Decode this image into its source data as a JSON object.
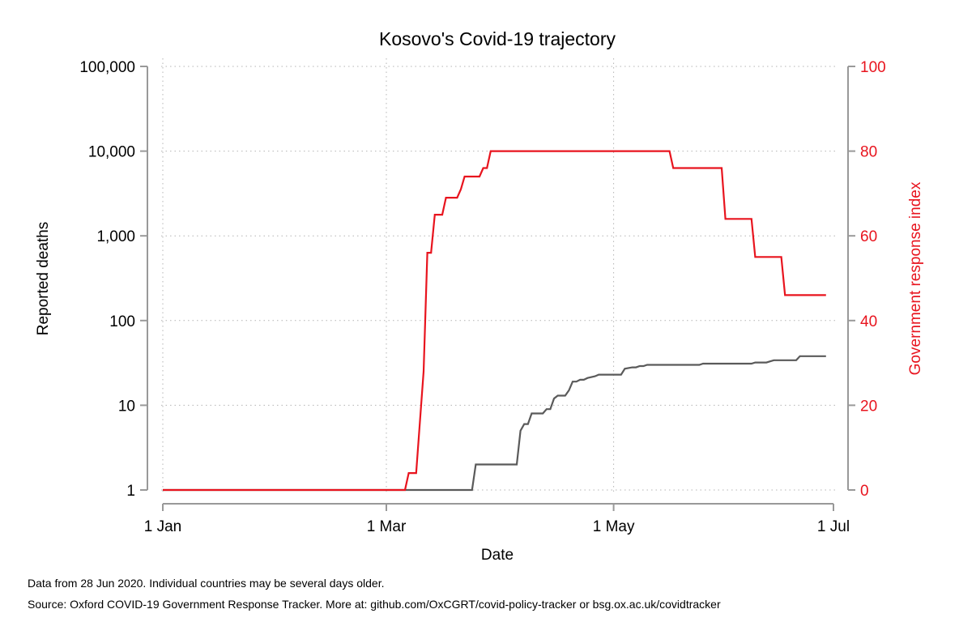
{
  "chart_data": {
    "type": "line",
    "title": "Kosovo's Covid-19 trajectory",
    "xlabel": "Date",
    "ylabel_left": "Reported deaths",
    "ylabel_right": "Government response index",
    "x_unit": "day of year 2020 (0 = 1 Jan)",
    "xlim": [
      0,
      180
    ],
    "x_ticks": [
      {
        "day": 0,
        "label": "1 Jan"
      },
      {
        "day": 60,
        "label": "1 Mar"
      },
      {
        "day": 121,
        "label": "1 May"
      },
      {
        "day": 182,
        "label": "1 Jul"
      }
    ],
    "left_axis": {
      "scale": "log",
      "ylim": [
        1,
        100000
      ],
      "ticks": [
        {
          "value": 1,
          "label": "1"
        },
        {
          "value": 10,
          "label": "10"
        },
        {
          "value": 100,
          "label": "100"
        },
        {
          "value": 1000,
          "label": "1,000"
        },
        {
          "value": 10000,
          "label": "10,000"
        },
        {
          "value": 100000,
          "label": "100,000"
        }
      ]
    },
    "right_axis": {
      "scale": "linear",
      "ylim": [
        0,
        100
      ],
      "ticks": [
        {
          "value": 0,
          "label": "0"
        },
        {
          "value": 20,
          "label": "20"
        },
        {
          "value": 40,
          "label": "40"
        },
        {
          "value": 60,
          "label": "60"
        },
        {
          "value": 80,
          "label": "80"
        },
        {
          "value": 100,
          "label": "100"
        }
      ]
    },
    "grid": true,
    "series": [
      {
        "name": "Reported deaths",
        "axis": "left",
        "color": "#5a5a5a",
        "step": true,
        "points": [
          [
            0,
            1
          ],
          [
            83,
            1
          ],
          [
            84,
            2
          ],
          [
            95,
            2
          ],
          [
            96,
            5
          ],
          [
            97,
            6
          ],
          [
            98,
            6
          ],
          [
            99,
            8
          ],
          [
            102,
            8
          ],
          [
            103,
            9
          ],
          [
            104,
            9
          ],
          [
            105,
            12
          ],
          [
            106,
            13
          ],
          [
            108,
            13
          ],
          [
            109,
            15
          ],
          [
            110,
            19
          ],
          [
            111,
            19
          ],
          [
            112,
            20
          ],
          [
            113,
            20
          ],
          [
            114,
            21
          ],
          [
            116,
            22
          ],
          [
            117,
            23
          ],
          [
            123,
            23
          ],
          [
            124,
            27
          ],
          [
            126,
            28
          ],
          [
            127,
            28
          ],
          [
            128,
            29
          ],
          [
            129,
            29
          ],
          [
            130,
            30
          ],
          [
            144,
            30
          ],
          [
            145,
            31
          ],
          [
            158,
            31
          ],
          [
            159,
            32
          ],
          [
            162,
            32
          ],
          [
            163,
            33
          ],
          [
            164,
            34
          ],
          [
            170,
            34
          ],
          [
            171,
            38
          ],
          [
            178,
            38
          ]
        ]
      },
      {
        "name": "Government response index",
        "axis": "right",
        "color": "#e8141e",
        "step": true,
        "points": [
          [
            0,
            0
          ],
          [
            65,
            0
          ],
          [
            66,
            4
          ],
          [
            68,
            4
          ],
          [
            69,
            16
          ],
          [
            70,
            28
          ],
          [
            71,
            56
          ],
          [
            72,
            56
          ],
          [
            73,
            65
          ],
          [
            75,
            65
          ],
          [
            76,
            69
          ],
          [
            79,
            69
          ],
          [
            80,
            71
          ],
          [
            81,
            74
          ],
          [
            85,
            74
          ],
          [
            86,
            76
          ],
          [
            87,
            76
          ],
          [
            88,
            80
          ],
          [
            136,
            80
          ],
          [
            137,
            76
          ],
          [
            150,
            76
          ],
          [
            151,
            64
          ],
          [
            158,
            64
          ],
          [
            159,
            55
          ],
          [
            166,
            55
          ],
          [
            167,
            46
          ],
          [
            178,
            46
          ]
        ]
      }
    ]
  },
  "footnotes": {
    "line1": "Data from 28 Jun 2020. Individual countries may be several days older.",
    "line2": "Source: Oxford COVID-19 Government Response Tracker. More at: github.com/OxCGRT/covid-policy-tracker or bsg.ox.ac.uk/covidtracker"
  }
}
